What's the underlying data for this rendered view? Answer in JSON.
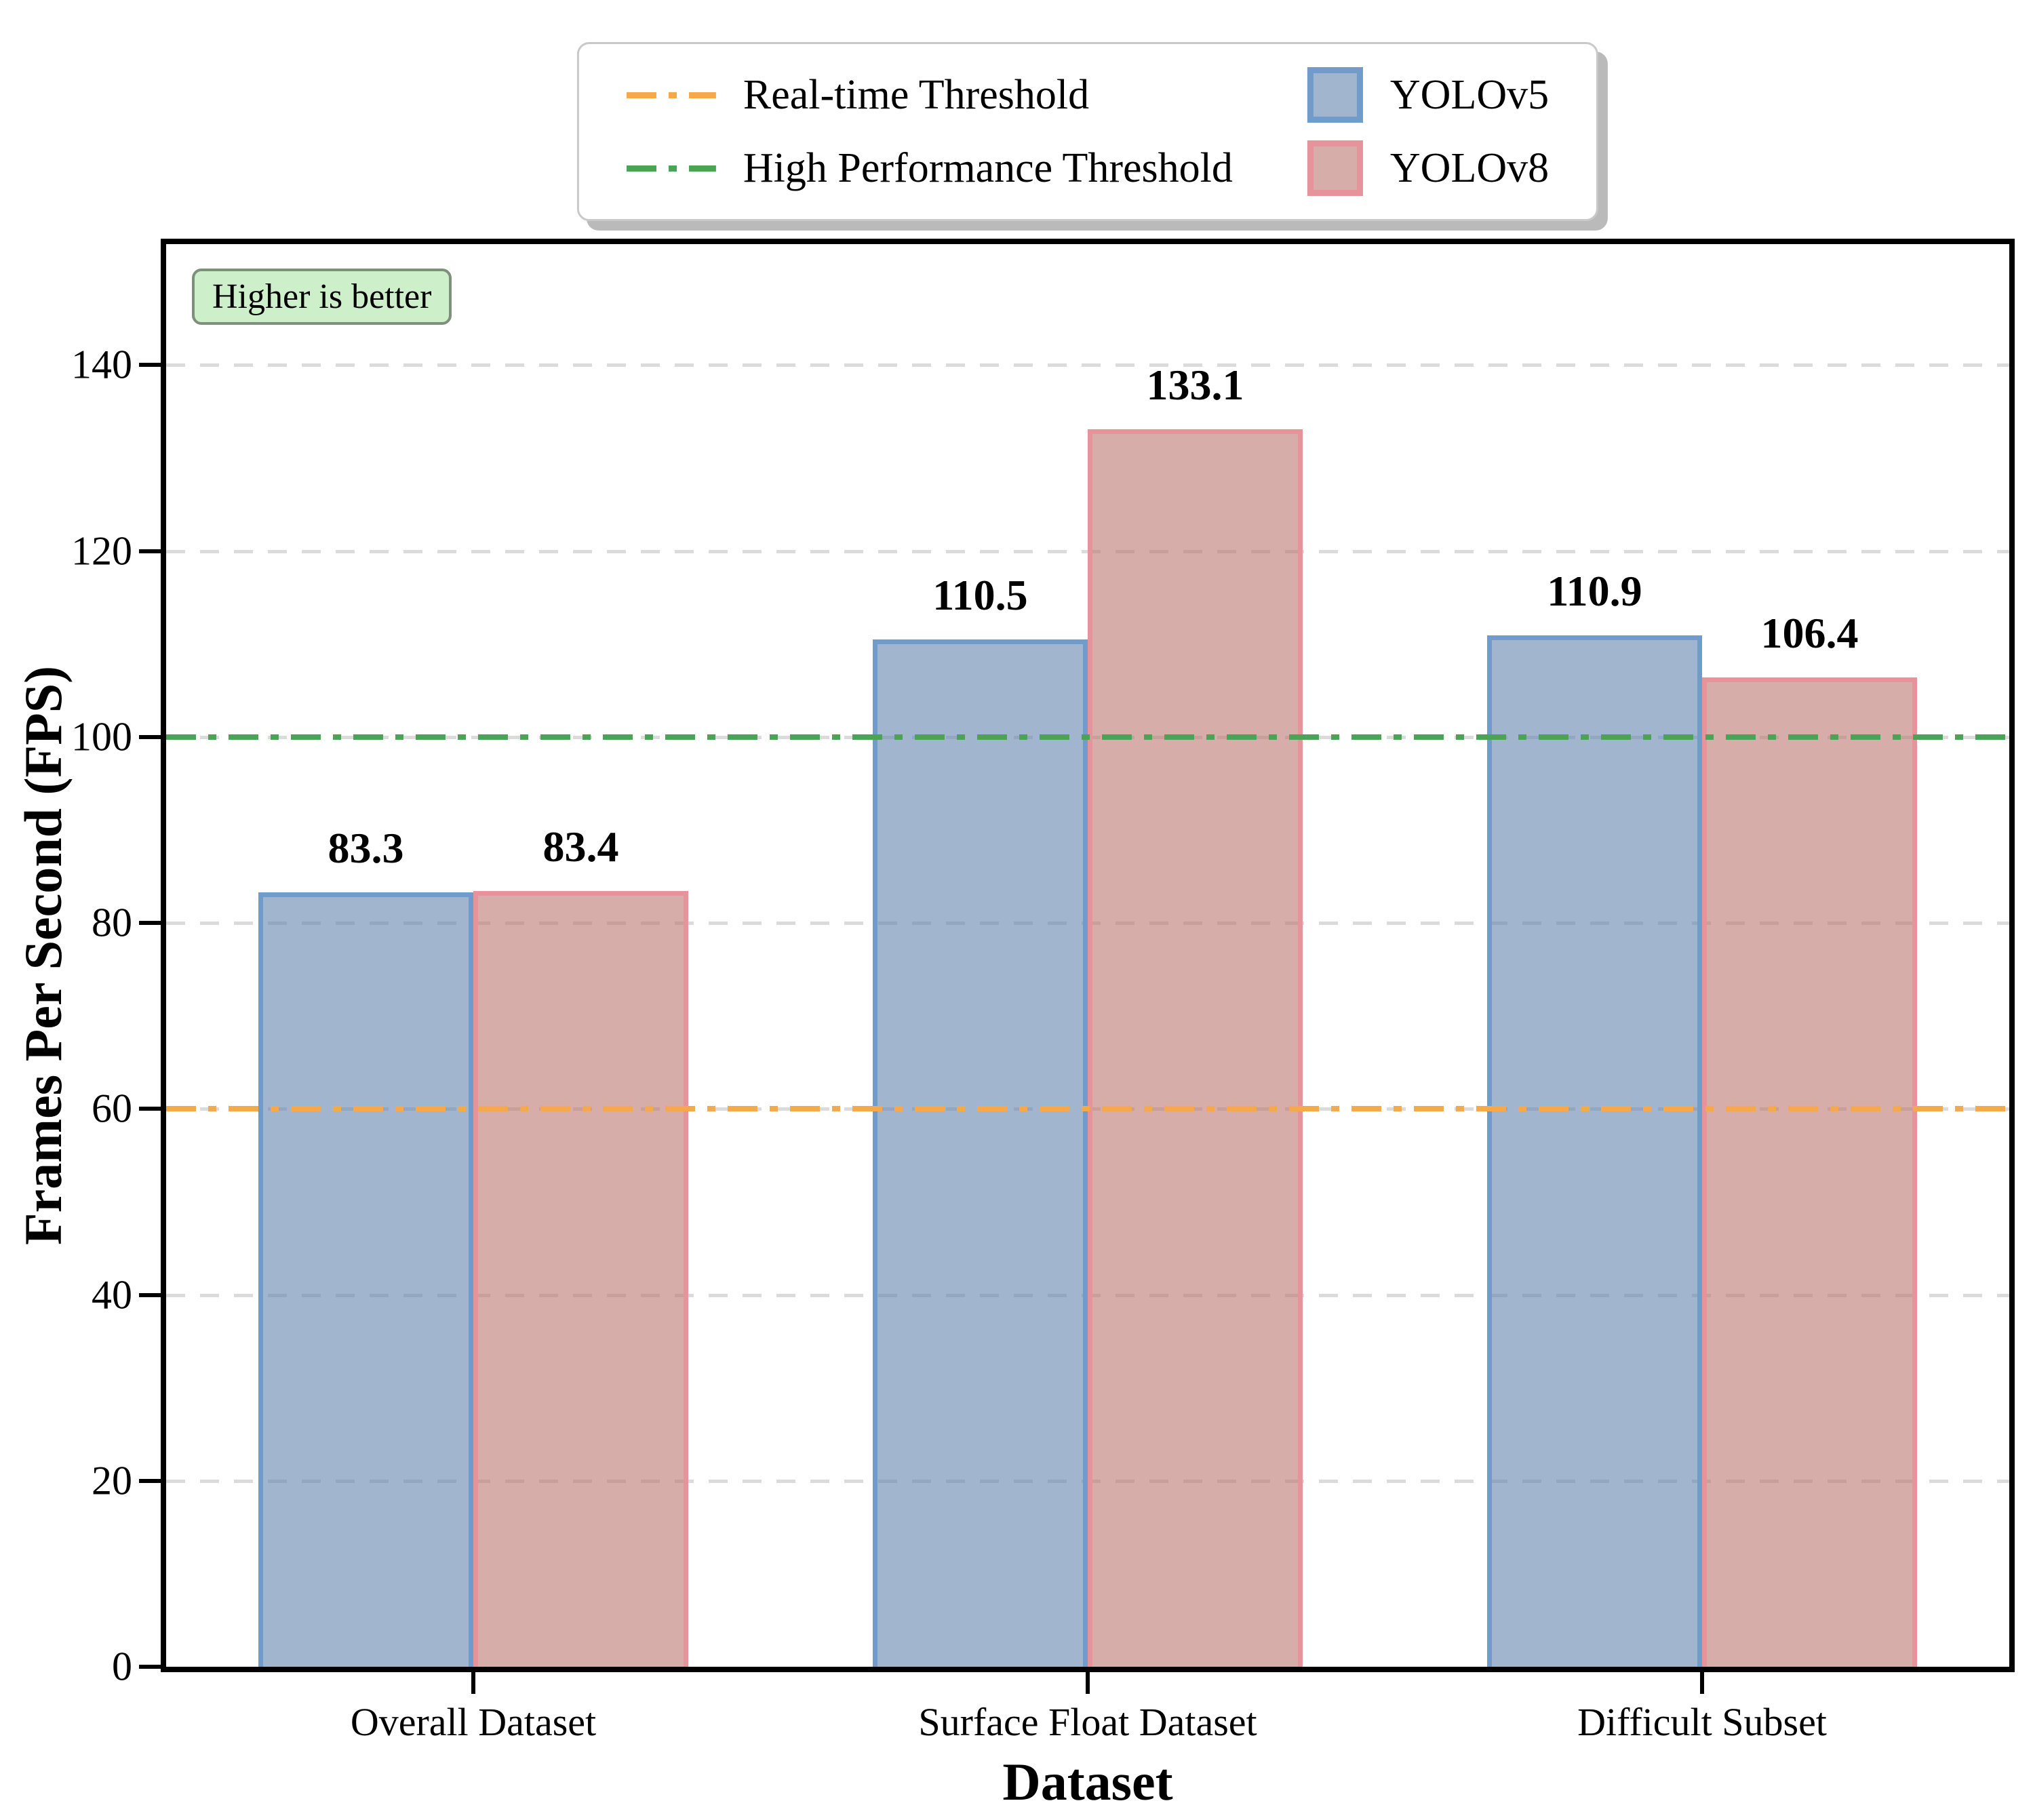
{
  "chart_data": {
    "type": "bar",
    "title": "",
    "categories": [
      "Overall Dataset",
      "Surface Float Dataset",
      "Difficult Subset"
    ],
    "series": [
      {
        "name": "YOLOv5",
        "values": [
          83.3,
          110.5,
          110.9
        ],
        "fill": "rgba(100,132,175,0.6)",
        "edge": "#6F9CCB"
      },
      {
        "name": "YOLOv8",
        "values": [
          83.4,
          133.1,
          106.4
        ],
        "fill": "rgba(188,118,112,0.6)",
        "edge": "#E6939B"
      }
    ],
    "value_labels": [
      "83.3",
      "83.4",
      "110.5",
      "133.1",
      "110.9",
      "106.4"
    ],
    "thresholds": [
      {
        "label": "Real-time Threshold",
        "value": 60,
        "color": "#F5A94B",
        "style": "dash-dot"
      },
      {
        "label": "High Performance Threshold",
        "value": 100,
        "color": "#4BA455",
        "style": "dash-dot"
      }
    ],
    "xlabel": "Dataset",
    "ylabel": "Frames Per Second (FPS)",
    "yticks": [
      0,
      20,
      40,
      60,
      80,
      100,
      120,
      140
    ],
    "ylim": [
      0,
      153
    ],
    "bar_width_pct": 11.667,
    "grid": "horizontal-dashed",
    "grid_color": "#DBDBDB",
    "legend_position": "top-center-outside",
    "annotation": "Higher is better",
    "annotation_bg": "#CDEFC9"
  }
}
